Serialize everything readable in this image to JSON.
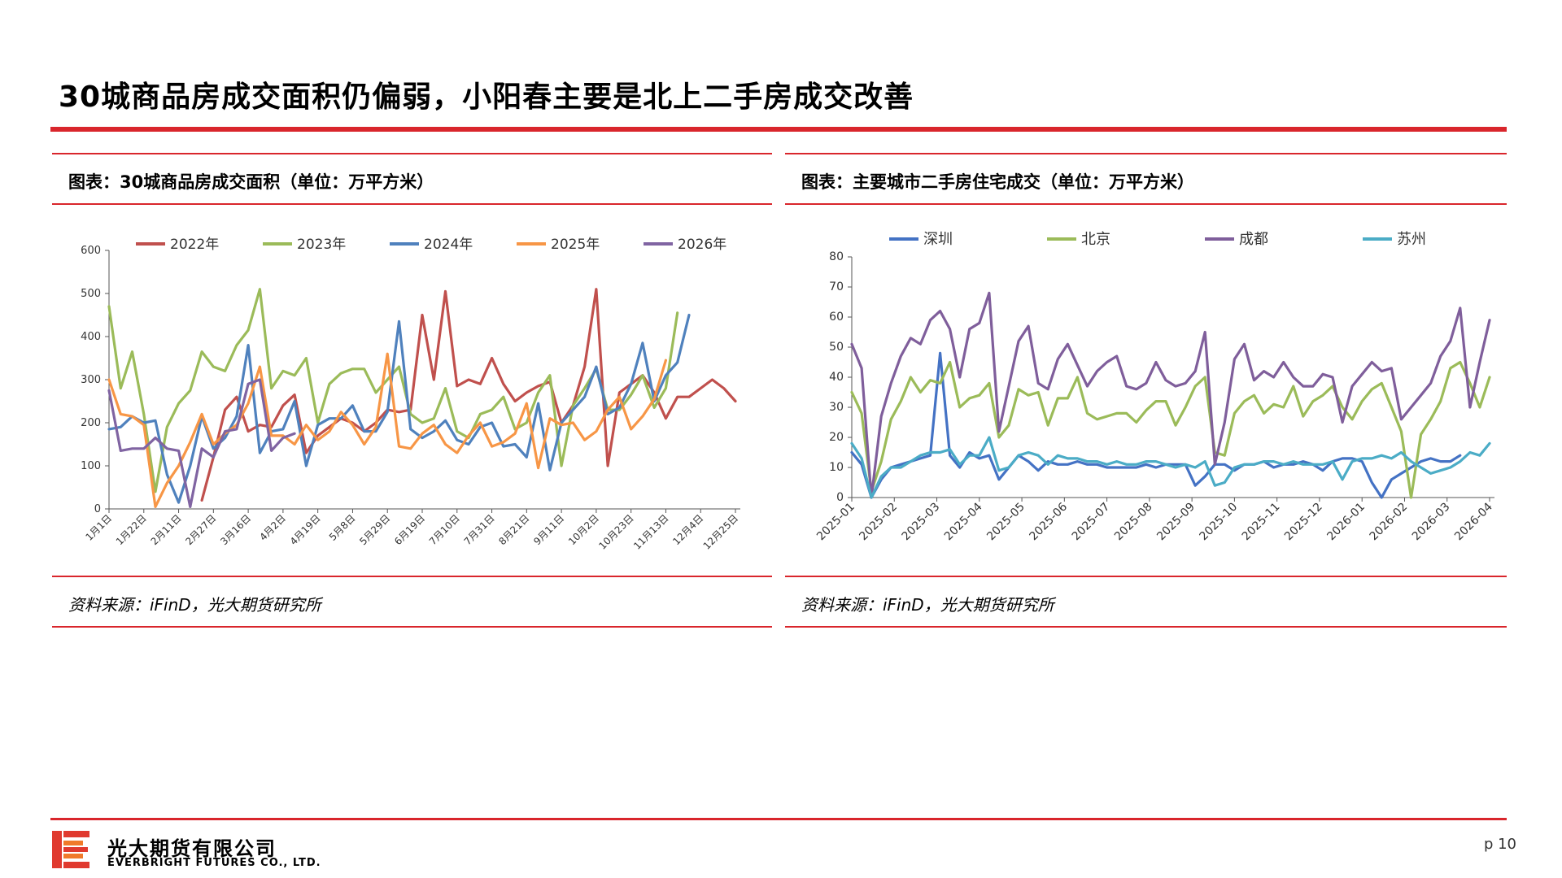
{
  "page": {
    "title": "30城商品房成交面积仍偏弱，小阳春主要是北上二手房成交改善",
    "page_number": "p 10",
    "accent_color": "#d9262c"
  },
  "footer": {
    "company_cn": "光大期货有限公司",
    "company_en": "EVERBRIGHT FUTURES CO., LTD."
  },
  "left_panel": {
    "title": "图表：30城商品房成交面积（单位：万平方米）",
    "source": "资料来源：iFinD，光大期货研究所"
  },
  "right_panel": {
    "title": "图表：主要城市二手房住宅成交（单位：万平方米）",
    "source": "资料来源：iFinD，光大期货研究所"
  },
  "chart_data": [
    {
      "type": "line",
      "title": "",
      "ylim": [
        0,
        600
      ],
      "yticks": [
        "0",
        "100",
        "200",
        "300",
        "400",
        "500",
        "600"
      ],
      "xticks": [
        "1月1日",
        "1月22日",
        "2月11日",
        "2月27日",
        "3月16日",
        "4月2日",
        "4月19日",
        "5月8日",
        "5月29日",
        "6月19日",
        "7月10日",
        "7月31日",
        "8月21日",
        "9月11日",
        "10月2日",
        "10月23日",
        "11月13日",
        "12月4日",
        "12月25日"
      ],
      "grid": false,
      "legend": "top",
      "series": [
        {
          "name": "2022年",
          "color": "#c0504d",
          "start": 8,
          "values": [
            20,
            120,
            230,
            260,
            180,
            195,
            190,
            240,
            265,
            130,
            170,
            190,
            210,
            200,
            180,
            200,
            230,
            225,
            230,
            450,
            300,
            505,
            285,
            300,
            290,
            350,
            290,
            250,
            270,
            285,
            295,
            200,
            240,
            330,
            510,
            100,
            270,
            290,
            310,
            270,
            210,
            260,
            260,
            280,
            300,
            280,
            250
          ]
        },
        {
          "name": "2023年",
          "color": "#9bbb59",
          "start": 0,
          "values": [
            470,
            280,
            365,
            220,
            40,
            190,
            245,
            275,
            365,
            330,
            320,
            380,
            415,
            510,
            280,
            320,
            310,
            350,
            200,
            290,
            315,
            325,
            325,
            270,
            300,
            330,
            220,
            200,
            210,
            280,
            180,
            165,
            220,
            230,
            260,
            185,
            200,
            270,
            310,
            100,
            240,
            280,
            325,
            230,
            230,
            265,
            310,
            235,
            280,
            455
          ]
        },
        {
          "name": "2024年",
          "color": "#4f81bd",
          "start": 0,
          "values": [
            185,
            190,
            215,
            200,
            205,
            80,
            15,
            100,
            215,
            140,
            165,
            215,
            380,
            130,
            180,
            185,
            250,
            100,
            195,
            210,
            210,
            240,
            180,
            180,
            225,
            435,
            185,
            165,
            180,
            205,
            160,
            150,
            190,
            200,
            145,
            150,
            120,
            245,
            90,
            200,
            230,
            260,
            330,
            220,
            235,
            290,
            385,
            250,
            310,
            340,
            450
          ]
        },
        {
          "name": "2025年",
          "color": "#f79646",
          "start": 0,
          "values": [
            300,
            220,
            215,
            195,
            5,
            60,
            100,
            155,
            220,
            150,
            175,
            195,
            245,
            330,
            170,
            170,
            150,
            195,
            160,
            180,
            225,
            195,
            150,
            190,
            360,
            145,
            140,
            175,
            195,
            150,
            130,
            170,
            200,
            145,
            155,
            175,
            245,
            95,
            210,
            195,
            200,
            160,
            180,
            230,
            260,
            185,
            215,
            255,
            345
          ]
        },
        {
          "name": "2026年",
          "color": "#8064a2",
          "start": 0,
          "values": [
            275,
            135,
            140,
            140,
            165,
            140,
            135,
            5,
            140,
            120,
            180,
            185,
            290,
            300,
            135,
            165,
            175
          ]
        }
      ]
    },
    {
      "type": "line",
      "title": "",
      "ylim": [
        0,
        80
      ],
      "yticks": [
        "0",
        "10",
        "20",
        "30",
        "40",
        "50",
        "60",
        "70",
        "80"
      ],
      "xticks": [
        "2025-01",
        "2025-02",
        "2025-03",
        "2025-04",
        "2025-05",
        "2025-06",
        "2025-07",
        "2025-08",
        "2025-09",
        "2025-10",
        "2025-11",
        "2025-12",
        "2026-01",
        "2026-02",
        "2026-03",
        "2026-04"
      ],
      "grid": false,
      "legend": "top",
      "series": [
        {
          "name": "深圳",
          "color": "#4472c4",
          "values": [
            15,
            11,
            0,
            6,
            10,
            11,
            12,
            13,
            14,
            48,
            14,
            10,
            15,
            13,
            14,
            6,
            10,
            14,
            12,
            9,
            12,
            11,
            11,
            12,
            11,
            11,
            10,
            10,
            10,
            10,
            11,
            10,
            11,
            11,
            11,
            4,
            7,
            11,
            11,
            9,
            11,
            11,
            12,
            10,
            11,
            11,
            12,
            11,
            9,
            12,
            13,
            13,
            12,
            5,
            0,
            6,
            8,
            10,
            12,
            13,
            12,
            12,
            14
          ]
        },
        {
          "name": "北京",
          "color": "#9bbb59",
          "values": [
            35,
            28,
            2,
            12,
            26,
            32,
            40,
            35,
            39,
            38,
            45,
            30,
            33,
            34,
            38,
            20,
            24,
            36,
            34,
            35,
            24,
            33,
            33,
            40,
            28,
            26,
            27,
            28,
            28,
            25,
            29,
            32,
            32,
            24,
            30,
            37,
            40,
            15,
            14,
            28,
            32,
            34,
            28,
            31,
            30,
            37,
            27,
            32,
            34,
            37,
            30,
            26,
            32,
            36,
            38,
            30,
            22,
            0,
            21,
            26,
            32,
            43,
            45,
            38,
            30,
            40
          ]
        },
        {
          "name": "成都",
          "color": "#7f5e9b",
          "values": [
            51,
            43,
            0,
            27,
            38,
            47,
            53,
            51,
            59,
            62,
            56,
            40,
            56,
            58,
            68,
            22,
            37,
            52,
            57,
            38,
            36,
            46,
            51,
            44,
            37,
            42,
            45,
            47,
            37,
            36,
            38,
            45,
            39,
            37,
            38,
            42,
            55,
            11,
            25,
            46,
            51,
            39,
            42,
            40,
            45,
            40,
            37,
            37,
            41,
            40,
            25,
            37,
            41,
            45,
            42,
            43,
            26,
            30,
            34,
            38,
            47,
            52,
            63,
            30,
            45,
            59
          ]
        },
        {
          "name": "苏州",
          "color": "#4bacc6",
          "values": [
            18,
            13,
            0,
            7,
            10,
            10,
            12,
            14,
            15,
            15,
            16,
            11,
            14,
            14,
            20,
            9,
            10,
            14,
            15,
            14,
            11,
            14,
            13,
            13,
            12,
            12,
            11,
            12,
            11,
            11,
            12,
            12,
            11,
            10,
            11,
            10,
            12,
            4,
            5,
            10,
            11,
            11,
            12,
            12,
            11,
            12,
            11,
            11,
            11,
            12,
            6,
            12,
            13,
            13,
            14,
            13,
            15,
            12,
            10,
            8,
            9,
            10,
            12,
            15,
            14,
            18
          ]
        }
      ]
    }
  ]
}
